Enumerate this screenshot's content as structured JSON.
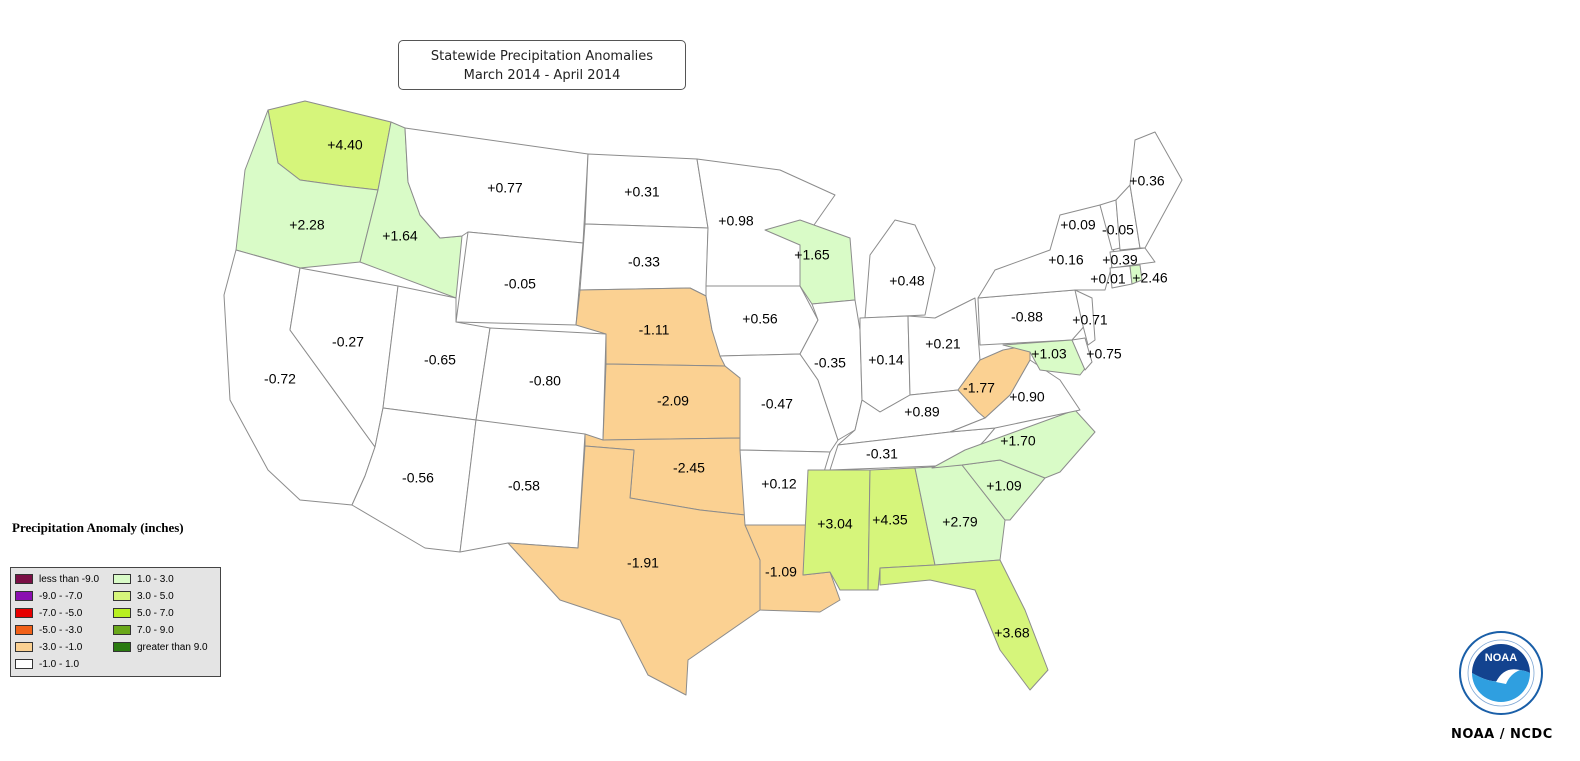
{
  "title": {
    "line1": "Statewide Precipitation Anomalies",
    "line2": "March 2014 - April 2014"
  },
  "legend": {
    "title": "Precipitation Anomaly (inches)",
    "items": [
      {
        "label": "less than -9.0",
        "color": "#7a0f45"
      },
      {
        "label": "-9.0 - -7.0",
        "color": "#8a0fb0"
      },
      {
        "label": "-7.0 - -5.0",
        "color": "#e60000"
      },
      {
        "label": "-5.0 - -3.0",
        "color": "#f06018"
      },
      {
        "label": "-3.0 - -1.0",
        "color": "#fbd192"
      },
      {
        "label": "-1.0 - 1.0",
        "color": "#ffffff"
      },
      {
        "label": "1.0 - 3.0",
        "color": "#d9fbc7"
      },
      {
        "label": "3.0 - 5.0",
        "color": "#d6f57b"
      },
      {
        "label": "5.0 - 7.0",
        "color": "#b8f020"
      },
      {
        "label": "7.0 - 9.0",
        "color": "#6aa81a"
      },
      {
        "label": "greater than 9.0",
        "color": "#2a7a10"
      }
    ]
  },
  "states": [
    {
      "name": "WA",
      "value": "+4.40",
      "color": "#d6f57b"
    },
    {
      "name": "OR",
      "value": "+2.28",
      "color": "#d9fbc7"
    },
    {
      "name": "ID",
      "value": "+1.64",
      "color": "#d9fbc7"
    },
    {
      "name": "MT",
      "value": "+0.77",
      "color": "#ffffff"
    },
    {
      "name": "WY",
      "value": "-0.05",
      "color": "#ffffff"
    },
    {
      "name": "CA",
      "value": "-0.72",
      "color": "#ffffff"
    },
    {
      "name": "NV",
      "value": "-0.27",
      "color": "#ffffff"
    },
    {
      "name": "UT",
      "value": "-0.65",
      "color": "#ffffff"
    },
    {
      "name": "CO",
      "value": "-0.80",
      "color": "#ffffff"
    },
    {
      "name": "AZ",
      "value": "-0.56",
      "color": "#ffffff"
    },
    {
      "name": "NM",
      "value": "-0.58",
      "color": "#ffffff"
    },
    {
      "name": "ND",
      "value": "+0.31",
      "color": "#ffffff"
    },
    {
      "name": "SD",
      "value": "-0.33",
      "color": "#ffffff"
    },
    {
      "name": "NE",
      "value": "-1.11",
      "color": "#fbd192"
    },
    {
      "name": "KS",
      "value": "-2.09",
      "color": "#fbd192"
    },
    {
      "name": "OK",
      "value": "-2.45",
      "color": "#fbd192"
    },
    {
      "name": "TX",
      "value": "-1.91",
      "color": "#fbd192"
    },
    {
      "name": "MN",
      "value": "+0.98",
      "color": "#ffffff"
    },
    {
      "name": "IA",
      "value": "+0.56",
      "color": "#ffffff"
    },
    {
      "name": "MO",
      "value": "-0.47",
      "color": "#ffffff"
    },
    {
      "name": "AR",
      "value": "+0.12",
      "color": "#ffffff"
    },
    {
      "name": "LA",
      "value": "-1.09",
      "color": "#fbd192"
    },
    {
      "name": "WI",
      "value": "+1.65",
      "color": "#d9fbc7"
    },
    {
      "name": "IL",
      "value": "-0.35",
      "color": "#ffffff"
    },
    {
      "name": "MI",
      "value": "+0.48",
      "color": "#ffffff"
    },
    {
      "name": "IN",
      "value": "+0.14",
      "color": "#ffffff"
    },
    {
      "name": "OH",
      "value": "+0.21",
      "color": "#ffffff"
    },
    {
      "name": "KY",
      "value": "+0.89",
      "color": "#ffffff"
    },
    {
      "name": "TN",
      "value": "-0.31",
      "color": "#ffffff"
    },
    {
      "name": "MS",
      "value": "+3.04",
      "color": "#d6f57b"
    },
    {
      "name": "AL",
      "value": "+4.35",
      "color": "#d6f57b"
    },
    {
      "name": "GA",
      "value": "+2.79",
      "color": "#d9fbc7"
    },
    {
      "name": "FL",
      "value": "+3.68",
      "color": "#d6f57b"
    },
    {
      "name": "SC",
      "value": "+1.09",
      "color": "#d9fbc7"
    },
    {
      "name": "NC",
      "value": "+1.70",
      "color": "#d9fbc7"
    },
    {
      "name": "VA",
      "value": "+0.90",
      "color": "#ffffff"
    },
    {
      "name": "WV",
      "value": "-1.77",
      "color": "#fbd192"
    },
    {
      "name": "PA",
      "value": "-0.88",
      "color": "#ffffff"
    },
    {
      "name": "NY",
      "value": "+0.16",
      "color": "#ffffff"
    },
    {
      "name": "MD",
      "value": "+1.03",
      "color": "#d9fbc7"
    },
    {
      "name": "DE",
      "value": "+0.75",
      "color": "#ffffff"
    },
    {
      "name": "NJ",
      "value": "+0.71",
      "color": "#ffffff"
    },
    {
      "name": "VT",
      "value": "+0.09",
      "color": "#ffffff"
    },
    {
      "name": "NH",
      "value": "-0.05",
      "color": "#ffffff"
    },
    {
      "name": "MA",
      "value": "+0.39",
      "color": "#ffffff"
    },
    {
      "name": "CT",
      "value": "+0.01",
      "color": "#ffffff"
    },
    {
      "name": "RI",
      "value": "+2.46",
      "color": "#d9fbc7"
    },
    {
      "name": "ME",
      "value": "+0.36",
      "color": "#ffffff"
    }
  ],
  "credit": "NOAA / NCDC",
  "logo_text": "NOAA"
}
